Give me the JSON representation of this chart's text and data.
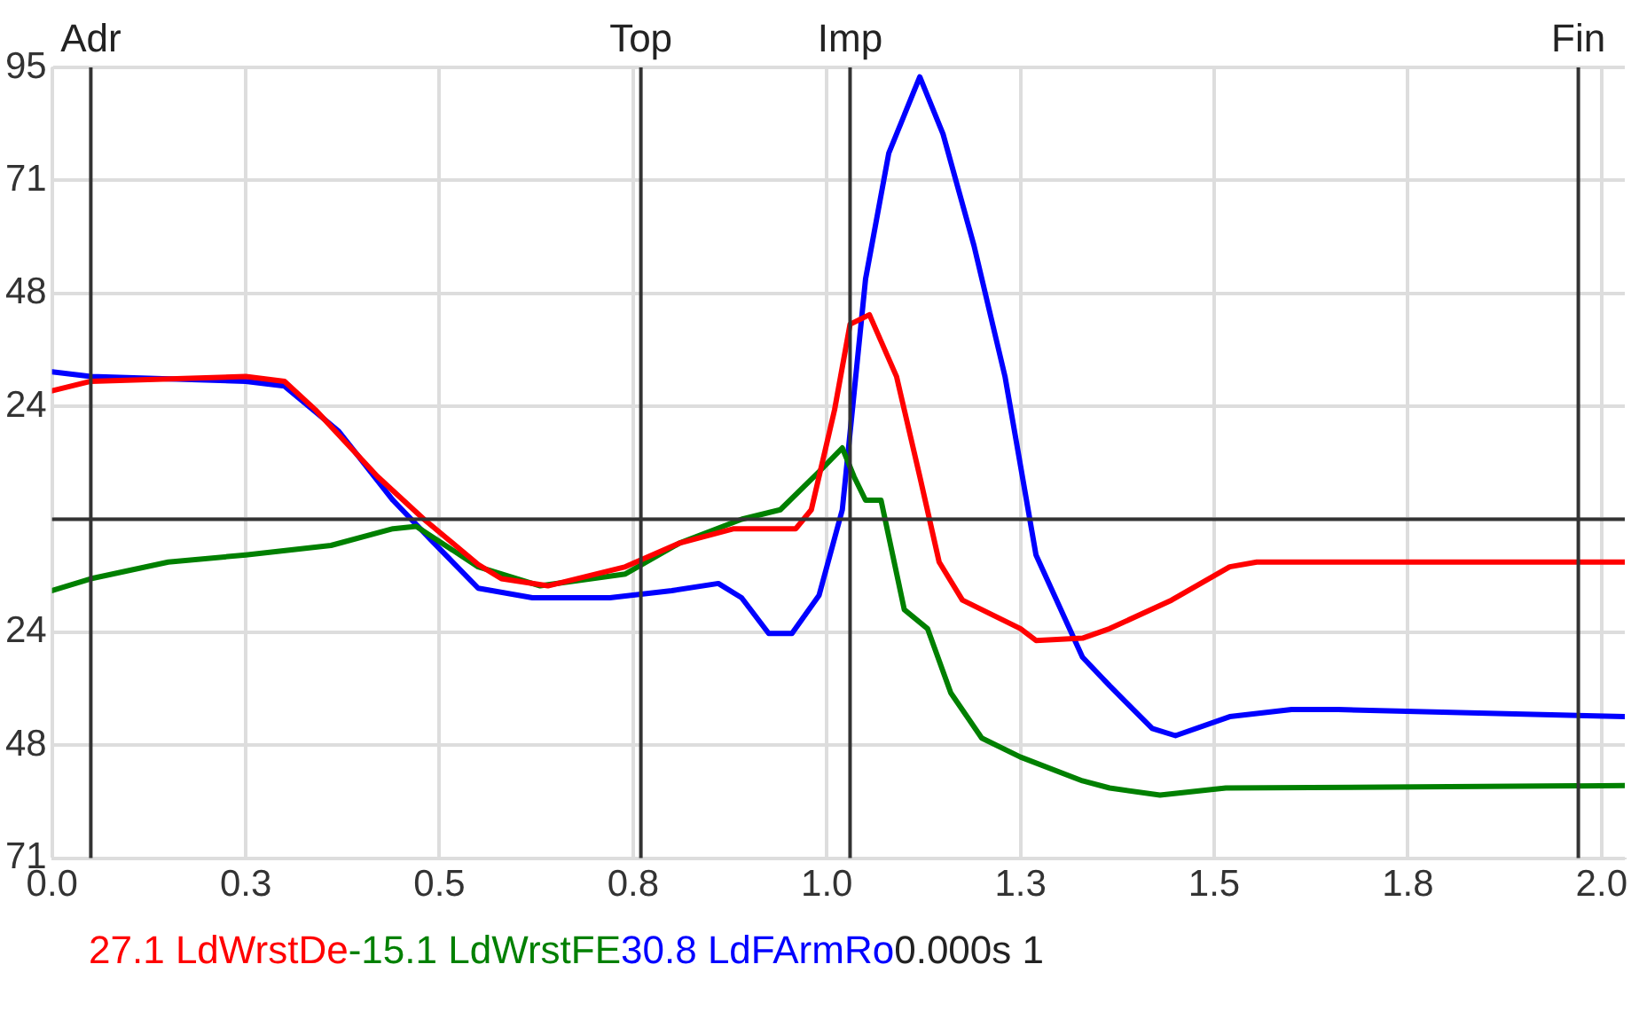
{
  "chart_data": {
    "type": "line",
    "xlim": [
      0,
      2.03
    ],
    "ylim": [
      -71.25,
      95
    ],
    "xticks": [
      {
        "value": 0,
        "label": "0.0"
      },
      {
        "value": 0.25,
        "label": "0.3"
      },
      {
        "value": 0.5,
        "label": "0.5"
      },
      {
        "value": 0.75,
        "label": "0.8"
      },
      {
        "value": 1,
        "label": "1.0"
      },
      {
        "value": 1.25,
        "label": "1.3"
      },
      {
        "value": 1.5,
        "label": "1.5"
      },
      {
        "value": 1.75,
        "label": "1.8"
      },
      {
        "value": 2,
        "label": "2.0"
      }
    ],
    "yticks": [
      {
        "value": 95,
        "label": "95"
      },
      {
        "value": 71.25,
        "label": "71"
      },
      {
        "value": 47.5,
        "label": "48"
      },
      {
        "value": 23.75,
        "label": "24"
      },
      {
        "value": 0,
        "label": null
      },
      {
        "value": -23.75,
        "label": "24"
      },
      {
        "value": -47.5,
        "label": "48"
      },
      {
        "value": -71.25,
        "label": "71"
      }
    ],
    "grid": true,
    "legend": "bottom",
    "marker": "none",
    "line_style": "solid",
    "ref_lines": [
      {
        "axis": "x",
        "value": 0.05,
        "label": "Adr"
      },
      {
        "axis": "x",
        "value": 0.76,
        "label": "Top"
      },
      {
        "axis": "x",
        "value": 1.03,
        "label": "Imp"
      },
      {
        "axis": "x",
        "value": 1.97,
        "label": "Fin"
      },
      {
        "axis": "y",
        "value": 0
      }
    ],
    "annotations": [
      "27.1",
      "-15.1",
      "30.8",
      "0.000s",
      "1"
    ],
    "series": [
      {
        "name": "LdWrstDe",
        "color": "#ff0000",
        "x": [
          0,
          0.05,
          0.25,
          0.3,
          0.34,
          0.42,
          0.48,
          0.55,
          0.58,
          0.64,
          0.74,
          0.81,
          0.88,
          0.96,
          0.98,
          1.01,
          1.03,
          1.055,
          1.09,
          1.12,
          1.145,
          1.175,
          1.25,
          1.27,
          1.33,
          1.365,
          1.445,
          1.52,
          1.555,
          2.03
        ],
        "values": [
          27,
          29,
          30,
          29,
          23,
          9,
          0,
          -9.5,
          -12.5,
          -14,
          -10,
          -5,
          -2,
          -2,
          2,
          23,
          41,
          43,
          30,
          9,
          -9,
          -17,
          -23,
          -25.5,
          -25,
          -23,
          -17,
          -10,
          -9,
          -9
        ]
      },
      {
        "name": "LdWrstFE",
        "color": "#008000",
        "x": [
          0,
          0.05,
          0.15,
          0.25,
          0.36,
          0.44,
          0.47,
          0.55,
          0.63,
          0.74,
          0.81,
          0.89,
          0.94,
          0.99,
          1.02,
          1.035,
          1.05,
          1.07,
          1.1,
          1.13,
          1.16,
          1.2,
          1.25,
          1.33,
          1.365,
          1.43,
          1.515,
          2.03
        ],
        "values": [
          -15,
          -12.5,
          -9,
          -7.5,
          -5.5,
          -2,
          -1.5,
          -10,
          -14,
          -11.5,
          -5,
          0,
          2,
          10,
          15,
          9,
          4,
          4,
          -19,
          -23,
          -36.5,
          -46,
          -50,
          -55,
          -56.5,
          -58,
          -56.5,
          -56
        ]
      },
      {
        "name": "LdFArmRo",
        "color": "#0000ff",
        "x": [
          0,
          0.05,
          0.25,
          0.3,
          0.37,
          0.44,
          0.49,
          0.55,
          0.62,
          0.72,
          0.8,
          0.86,
          0.89,
          0.925,
          0.955,
          0.99,
          1.02,
          1.05,
          1.08,
          1.12,
          1.15,
          1.19,
          1.23,
          1.27,
          1.33,
          1.365,
          1.42,
          1.45,
          1.52,
          1.6,
          1.66,
          2.03
        ],
        "values": [
          31,
          30,
          29,
          28,
          18.5,
          4,
          -4.5,
          -14.5,
          -16.5,
          -16.5,
          -15,
          -13.5,
          -16.5,
          -24,
          -24,
          -16,
          2,
          50.5,
          77,
          93,
          81,
          57.5,
          30,
          -7.5,
          -29,
          -35,
          -44,
          -45.5,
          -41.5,
          -40,
          -40,
          -41.5
        ]
      }
    ]
  }
}
